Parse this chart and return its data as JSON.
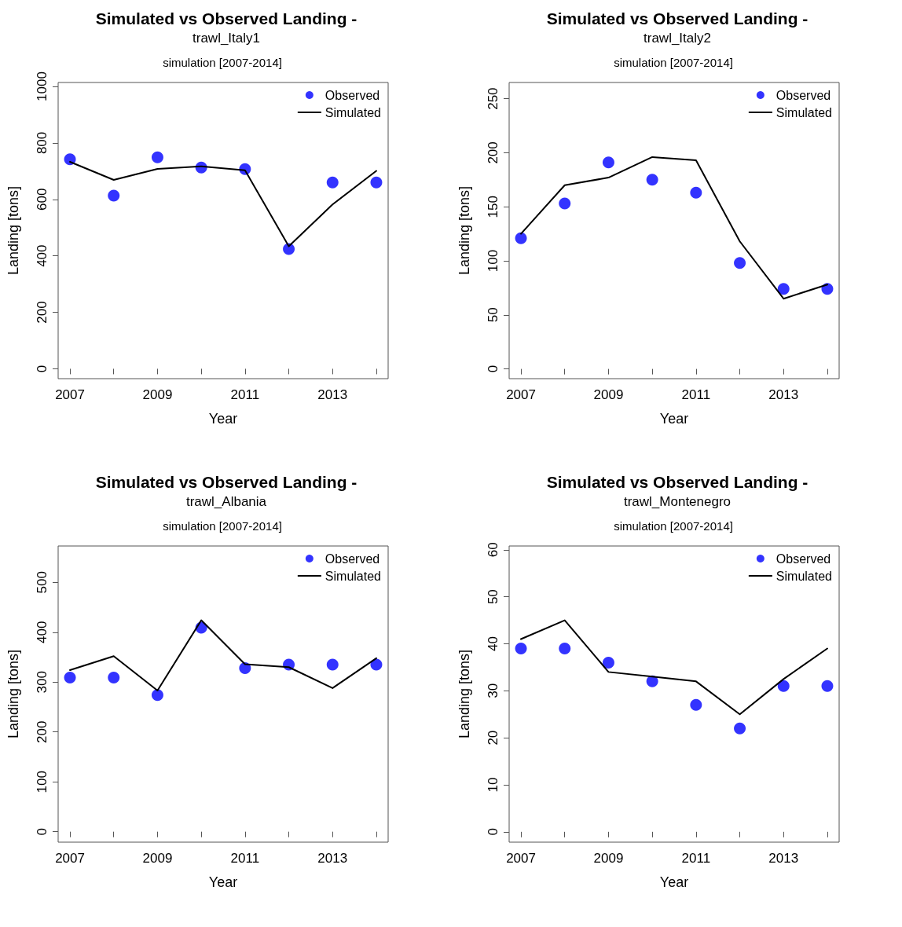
{
  "chart_data": [
    {
      "type": "line",
      "title": "Simulated vs Observed Landing -",
      "subtitle": "trawl_Italy1",
      "annotations": [
        "simulation [2007-2014]"
      ],
      "xlabel": "Year",
      "ylabel": "Landing [tons]",
      "x": [
        2007,
        2008,
        2009,
        2010,
        2011,
        2012,
        2013,
        2014
      ],
      "series": [
        {
          "name": "Observed",
          "type": "scatter",
          "marker": "circle",
          "color": "#0000ff",
          "values": [
            742,
            613,
            749,
            713,
            707,
            424,
            660,
            660
          ]
        },
        {
          "name": "Simulated",
          "type": "line",
          "line_style": "solid",
          "color": "#000000",
          "values": [
            733,
            669,
            708,
            717,
            703,
            434,
            582,
            701
          ]
        }
      ],
      "xlim": [
        2006.73,
        2014.27
      ],
      "xticks": [
        2007,
        {
          "value": 2008,
          "label": null
        },
        2009,
        {
          "value": 2010,
          "label": null
        },
        2011,
        {
          "value": 2012,
          "label": null
        },
        2013,
        {
          "value": 2014,
          "label": null
        }
      ],
      "ylim": [
        -35,
        1014
      ],
      "yticks": [
        0,
        200,
        400,
        600,
        800,
        1000
      ],
      "grid": false,
      "legend": "top right"
    },
    {
      "type": "line",
      "title": "Simulated vs Observed Landing -",
      "subtitle": "trawl_Italy2",
      "annotations": [
        "simulation [2007-2014]"
      ],
      "xlabel": "Year",
      "ylabel": "Landing [tons]",
      "x": [
        2007,
        2008,
        2009,
        2010,
        2011,
        2012,
        2013,
        2014
      ],
      "series": [
        {
          "name": "Observed",
          "type": "scatter",
          "marker": "circle",
          "color": "#0000ff",
          "values": [
            121,
            153,
            191,
            175,
            163,
            98,
            74,
            74
          ]
        },
        {
          "name": "Simulated",
          "type": "line",
          "line_style": "solid",
          "color": "#000000",
          "values": [
            125,
            170,
            177,
            196,
            193,
            118,
            65,
            78
          ]
        }
      ],
      "xlim": [
        2006.73,
        2014.27
      ],
      "xticks": [
        2007,
        {
          "value": 2008,
          "label": null
        },
        2009,
        {
          "value": 2010,
          "label": null
        },
        2011,
        {
          "value": 2012,
          "label": null
        },
        2013,
        {
          "value": 2014,
          "label": null
        }
      ],
      "ylim": [
        -9,
        265
      ],
      "yticks": [
        0,
        50,
        100,
        150,
        200,
        250
      ],
      "grid": false,
      "legend": "top right"
    },
    {
      "type": "line",
      "title": "Simulated vs Observed Landing -",
      "subtitle": "trawl_Albania",
      "annotations": [
        "simulation [2007-2014]"
      ],
      "xlabel": "Year",
      "ylabel": "Landing [tons]",
      "x": [
        2007,
        2008,
        2009,
        2010,
        2011,
        2012,
        2013,
        2014
      ],
      "series": [
        {
          "name": "Observed",
          "type": "scatter",
          "marker": "circle",
          "color": "#0000ff",
          "values": [
            309,
            309,
            274,
            409,
            328,
            335,
            335,
            335
          ]
        },
        {
          "name": "Simulated",
          "type": "line",
          "line_style": "solid",
          "color": "#000000",
          "values": [
            324,
            352,
            283,
            424,
            336,
            330,
            288,
            348
          ]
        }
      ],
      "xlim": [
        2006.73,
        2014.27
      ],
      "xticks": [
        2007,
        {
          "value": 2008,
          "label": null
        },
        2009,
        {
          "value": 2010,
          "label": null
        },
        2011,
        {
          "value": 2012,
          "label": null
        },
        2013,
        {
          "value": 2014,
          "label": null
        }
      ],
      "ylim": [
        -21,
        573
      ],
      "yticks": [
        0,
        100,
        200,
        300,
        400,
        500
      ],
      "grid": false,
      "legend": "top right"
    },
    {
      "type": "line",
      "title": "Simulated vs Observed Landing -",
      "subtitle": "trawl_Montenegro",
      "annotations": [
        "simulation [2007-2014]"
      ],
      "xlabel": "Year",
      "ylabel": "Landing [tons]",
      "x": [
        2007,
        2008,
        2009,
        2010,
        2011,
        2012,
        2013,
        2014
      ],
      "series": [
        {
          "name": "Observed",
          "type": "scatter",
          "marker": "circle",
          "color": "#0000ff",
          "values": [
            39,
            39,
            36,
            32,
            27,
            22,
            31,
            31
          ]
        },
        {
          "name": "Simulated",
          "type": "line",
          "line_style": "solid",
          "color": "#000000",
          "values": [
            41,
            45,
            34,
            33,
            32,
            25,
            32.5,
            39
          ]
        }
      ],
      "xlim": [
        2006.73,
        2014.27
      ],
      "xticks": [
        2007,
        {
          "value": 2008,
          "label": null
        },
        2009,
        {
          "value": 2010,
          "label": null
        },
        2011,
        {
          "value": 2012,
          "label": null
        },
        2013,
        {
          "value": 2014,
          "label": null
        }
      ],
      "ylim": [
        -2.2,
        60.8
      ],
      "yticks": [
        0,
        10,
        20,
        30,
        40,
        50,
        60
      ],
      "grid": false,
      "legend": "top right"
    }
  ]
}
